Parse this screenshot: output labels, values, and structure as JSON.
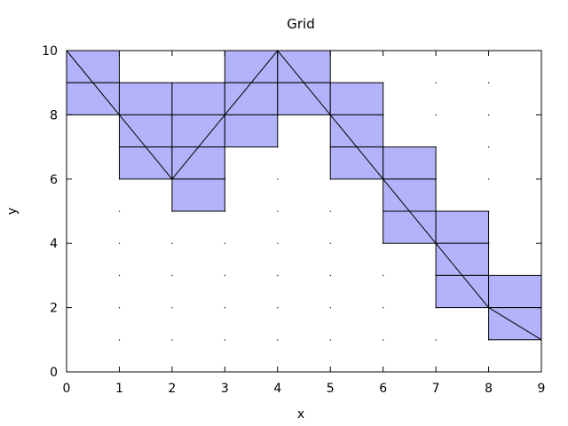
{
  "chart_data": {
    "type": "line",
    "title": "Grid",
    "xlabel": "x",
    "ylabel": "y",
    "xlim": [
      0,
      9
    ],
    "ylim": [
      0,
      10
    ],
    "x_ticks": [
      0,
      1,
      2,
      3,
      4,
      5,
      6,
      7,
      8,
      9
    ],
    "y_ticks": [
      0,
      2,
      4,
      6,
      8,
      10
    ],
    "grid": "dotted points at integer x, odd y",
    "colors": {
      "fill": "#b3b3fb",
      "stroke": "#000000"
    },
    "series": [
      {
        "x": [
          0,
          1,
          2,
          3,
          4,
          5,
          6,
          7,
          8,
          9
        ],
        "y": [
          10,
          8,
          6,
          8,
          10,
          8,
          6,
          4,
          2,
          1
        ]
      }
    ],
    "cells": [
      {
        "x": 0,
        "y": 9
      },
      {
        "x": 0,
        "y": 8
      },
      {
        "x": 1,
        "y": 8
      },
      {
        "x": 1,
        "y": 7
      },
      {
        "x": 1,
        "y": 6
      },
      {
        "x": 2,
        "y": 8
      },
      {
        "x": 2,
        "y": 7
      },
      {
        "x": 2,
        "y": 6
      },
      {
        "x": 2,
        "y": 5
      },
      {
        "x": 3,
        "y": 9
      },
      {
        "x": 3,
        "y": 8
      },
      {
        "x": 3,
        "y": 7
      },
      {
        "x": 4,
        "y": 9
      },
      {
        "x": 4,
        "y": 8
      },
      {
        "x": 5,
        "y": 8
      },
      {
        "x": 5,
        "y": 7
      },
      {
        "x": 5,
        "y": 6
      },
      {
        "x": 6,
        "y": 6
      },
      {
        "x": 6,
        "y": 5
      },
      {
        "x": 6,
        "y": 4
      },
      {
        "x": 7,
        "y": 4
      },
      {
        "x": 7,
        "y": 3
      },
      {
        "x": 7,
        "y": 2
      },
      {
        "x": 8,
        "y": 2
      },
      {
        "x": 8,
        "y": 1
      }
    ]
  }
}
